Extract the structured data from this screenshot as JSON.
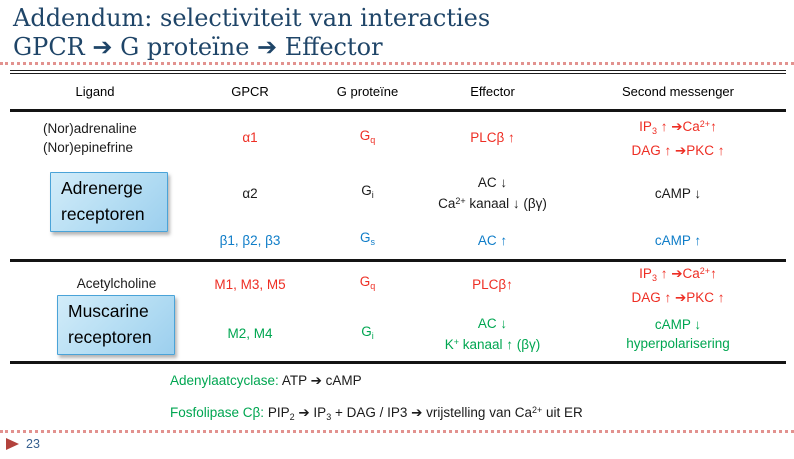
{
  "palette": {
    "red": "#ee2e24",
    "blue": "#0f7dc8",
    "green": "#00a651",
    "black": "#1b1b1b"
  },
  "title": {
    "line1": "Addendum: selectiviteit van interacties",
    "line2": "GPCR ➔ G proteïne ➔ Effector"
  },
  "table": {
    "headers": [
      "Ligand",
      "GPCR",
      "G proteïne",
      "Effector",
      "Second messenger"
    ],
    "rows": {
      "r1": {
        "ligand": {
          "c": "black",
          "lines": [
            [
              "(Nor)adrenaline"
            ],
            [
              "(Nor)epinefrine"
            ]
          ]
        },
        "gpcr": {
          "c": "red",
          "lines": [
            [
              "α1"
            ]
          ]
        },
        "gprotein": {
          "c": "red",
          "lines": [
            [
              {
                "t": "G"
              },
              {
                "t": "q",
                "m": "sub"
              }
            ]
          ]
        },
        "effector": {
          "c": "red",
          "lines": [
            [
              "PLCβ ↑"
            ]
          ]
        },
        "second_messenger": {
          "c": "red",
          "lines": [
            [
              {
                "t": "IP"
              },
              {
                "t": "3",
                "m": "sub"
              },
              {
                "t": " ↑ "
              },
              {
                "t": "➔"
              },
              {
                "t": "Ca"
              },
              {
                "t": "2+",
                "m": "sup"
              },
              {
                "t": "↑"
              }
            ],
            [
              {
                "t": "DAG ↑ "
              },
              {
                "t": "➔"
              },
              {
                "t": "PKC ↑"
              }
            ]
          ]
        }
      },
      "r2": {
        "gpcr": {
          "c": "black",
          "lines": [
            [
              "α2"
            ]
          ]
        },
        "gprotein": {
          "c": "black",
          "lines": [
            [
              {
                "t": "G"
              },
              {
                "t": "i",
                "m": "sub"
              }
            ]
          ]
        },
        "effector": {
          "c": "black",
          "lines": [
            [
              "AC ↓"
            ],
            [
              {
                "t": "Ca"
              },
              {
                "t": "2+",
                "m": "sup"
              },
              {
                "t": " kanaal ↓ (βγ)"
              }
            ]
          ]
        },
        "second_messenger": {
          "c": "black",
          "lines": [
            [
              "cAMP ↓"
            ]
          ]
        }
      },
      "r3": {
        "gpcr": {
          "c": "blue",
          "lines": [
            [
              "β1, β2, β3"
            ]
          ]
        },
        "gprotein": {
          "c": "blue",
          "lines": [
            [
              {
                "t": "G"
              },
              {
                "t": "s",
                "m": "sub"
              }
            ]
          ]
        },
        "effector": {
          "c": "blue",
          "lines": [
            [
              "AC ↑"
            ]
          ]
        },
        "second_messenger": {
          "c": "blue",
          "lines": [
            [
              "cAMP ↑"
            ]
          ]
        }
      },
      "r4": {
        "ligand_label": "Acetylcholine",
        "gpcr": {
          "c": "red",
          "lines": [
            [
              "M1, M3, M5"
            ]
          ]
        },
        "gprotein": {
          "c": "red",
          "lines": [
            [
              {
                "t": "G"
              },
              {
                "t": "q",
                "m": "sub"
              }
            ]
          ]
        },
        "effector": {
          "c": "red",
          "lines": [
            [
              "PLCβ↑"
            ]
          ]
        },
        "second_messenger": {
          "c": "red",
          "lines": [
            [
              {
                "t": "IP"
              },
              {
                "t": "3",
                "m": "sub"
              },
              {
                "t": " ↑ "
              },
              {
                "t": "➔"
              },
              {
                "t": "Ca"
              },
              {
                "t": "2+",
                "m": "sup"
              },
              {
                "t": "↑"
              }
            ],
            [
              {
                "t": "DAG ↑ "
              },
              {
                "t": "➔"
              },
              {
                "t": "PKC ↑"
              }
            ]
          ]
        }
      },
      "r5": {
        "gpcr": {
          "c": "green",
          "lines": [
            [
              "M2, M4"
            ]
          ]
        },
        "gprotein": {
          "c": "green",
          "lines": [
            [
              {
                "t": "G"
              },
              {
                "t": "i",
                "m": "sub"
              }
            ]
          ]
        },
        "effector": {
          "c": "green",
          "lines": [
            [
              "AC ↓"
            ],
            [
              {
                "t": "K"
              },
              {
                "t": "+",
                "m": "sup"
              },
              {
                "t": " kanaal ↑ (βγ)"
              }
            ]
          ]
        },
        "second_messenger": {
          "c": "green",
          "lines": [
            [
              "cAMP ↓"
            ],
            [
              "hyperpolarisering"
            ]
          ]
        }
      }
    }
  },
  "groups": {
    "adrenerge": {
      "label_lines": [
        "Adrenerge",
        "receptoren"
      ]
    },
    "muscarine": {
      "label_lines": [
        "Muscarine",
        "receptoren"
      ]
    }
  },
  "notes": [
    {
      "c": "black",
      "lines": [
        [
          {
            "t": "Adenylaatcyclase:",
            "c": "green"
          },
          {
            "t": " ATP "
          },
          {
            "t": "➔"
          },
          {
            "t": " cAMP"
          }
        ]
      ]
    },
    {
      "c": "black",
      "lines": [
        [
          {
            "t": "Fosfolipase Cβ:",
            "c": "green"
          },
          {
            "t": " PIP"
          },
          {
            "t": "2",
            "m": "sub"
          },
          {
            "t": " "
          },
          {
            "t": "➔"
          },
          {
            "t": " IP"
          },
          {
            "t": "3",
            "m": "sub"
          },
          {
            "t": " + DAG / IP3 "
          },
          {
            "t": "➔"
          },
          {
            "t": " vrijstelling van Ca"
          },
          {
            "t": "2+",
            "m": "sup"
          },
          {
            "t": " uit ER"
          }
        ]
      ]
    }
  ],
  "footer": {
    "page_number": "23"
  }
}
